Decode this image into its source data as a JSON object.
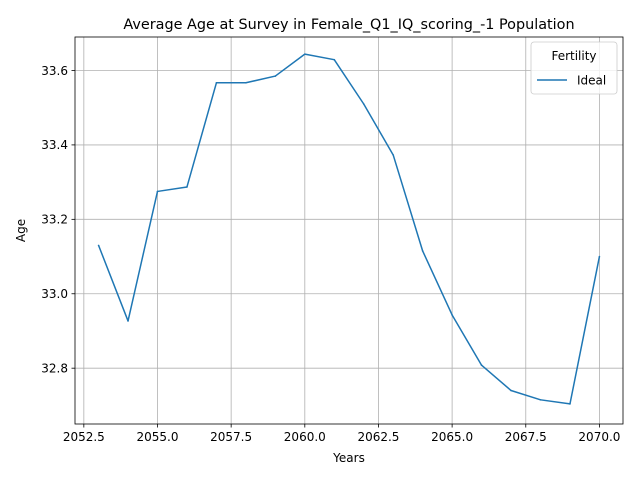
{
  "chart_data": {
    "type": "line",
    "title": "Average Age at Survey in Female_Q1_IQ_scoring_-1 Population",
    "xlabel": "Years",
    "ylabel": "Age",
    "xlim": [
      2052.2,
      2070.8
    ],
    "ylim": [
      32.65,
      33.69
    ],
    "x_ticks": [
      2052.5,
      2055.0,
      2057.5,
      2060.0,
      2062.5,
      2065.0,
      2067.5,
      2070.0
    ],
    "x_tick_labels": [
      "2052.5",
      "2055.0",
      "2057.5",
      "2060.0",
      "2062.5",
      "2065.0",
      "2067.5",
      "2070.0"
    ],
    "y_ticks": [
      32.8,
      33.0,
      33.2,
      33.4,
      33.6
    ],
    "y_tick_labels": [
      "32.8",
      "33.0",
      "33.2",
      "33.4",
      "33.6"
    ],
    "grid": true,
    "legend": {
      "title": "Fertility",
      "placement": "top-right"
    },
    "series": [
      {
        "name": "Ideal",
        "color": "#1f77b4",
        "x": [
          2053,
          2054,
          2055,
          2056,
          2057,
          2058,
          2059,
          2060,
          2061,
          2062,
          2063,
          2064,
          2065,
          2066,
          2067,
          2068,
          2069,
          2070
        ],
        "values": [
          33.13,
          32.927,
          33.275,
          33.287,
          33.567,
          33.567,
          33.585,
          33.644,
          33.629,
          33.51,
          33.373,
          33.115,
          32.943,
          32.808,
          32.74,
          32.715,
          32.704,
          33.1
        ]
      }
    ]
  }
}
